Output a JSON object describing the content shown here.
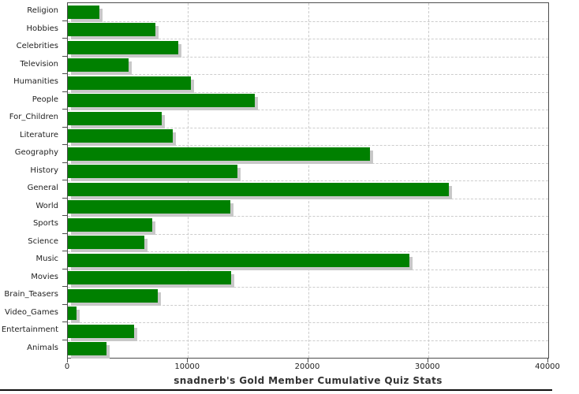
{
  "chart_data": {
    "type": "bar",
    "orientation": "horizontal",
    "title": "snadnerb's Gold Member Cumulative Quiz Stats",
    "xlabel": "",
    "ylabel": "",
    "categories": [
      "Religion",
      "Hobbies",
      "Celebrities",
      "Television",
      "Humanities",
      "People",
      "For_Children",
      "Literature",
      "Geography",
      "History",
      "General",
      "World",
      "Sports",
      "Science",
      "Music",
      "Movies",
      "Brain_Teasers",
      "Video_Games",
      "Entertainment",
      "Animals"
    ],
    "values": [
      2600,
      7300,
      9200,
      5050,
      10250,
      15550,
      7800,
      8750,
      25150,
      14100,
      31700,
      13550,
      7050,
      6400,
      28450,
      13600,
      7500,
      700,
      5550,
      3250
    ],
    "xlim": [
      0,
      40000
    ],
    "x_tick_labels": [
      "0",
      "10000",
      "20000",
      "30000",
      "40000"
    ],
    "x_tick_values": [
      0,
      10000,
      20000,
      30000,
      40000
    ],
    "grid": "dashed gridlines on both axes",
    "legend": "none",
    "bar_color": "#008000",
    "bar_shadow_color": "#c8c8c8",
    "gridline_color": "#cccccc",
    "axis_color": "#4d4d4d",
    "text_color": "#222222",
    "title_color": "#333333"
  }
}
